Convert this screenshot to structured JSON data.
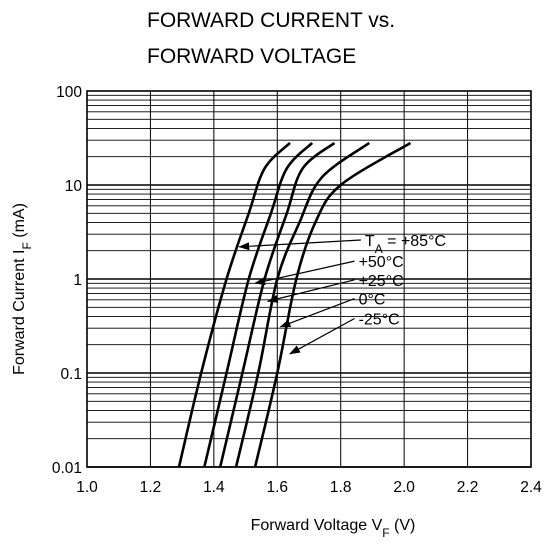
{
  "chart_data": {
    "type": "line",
    "title_line1": "FORWARD CURRENT vs.",
    "title_line2": "FORWARD VOLTAGE",
    "xlabel": {
      "main": "Forward Voltage V",
      "sub": "F",
      "unit": " (V)"
    },
    "ylabel": {
      "main": "Forward Current I",
      "sub": "F",
      "unit": " (mA)"
    },
    "xlim": [
      1.0,
      2.4
    ],
    "ylim": [
      0.01,
      100
    ],
    "yscale": "log",
    "grid": true,
    "x_ticks": [
      "1.0",
      "1.2",
      "1.4",
      "1.6",
      "1.8",
      "2.0",
      "2.2",
      "2.4"
    ],
    "y_ticks": [
      "0.01",
      "0.1",
      "1",
      "10",
      "100"
    ],
    "series": [
      {
        "name": "T_A = +85°C",
        "label_main": "T",
        "label_sub": "A",
        "label_rest": " = +85°C",
        "points": [
          [
            1.29,
            0.01
          ],
          [
            1.36,
            0.1
          ],
          [
            1.44,
            1
          ],
          [
            1.51,
            5
          ],
          [
            1.56,
            15
          ],
          [
            1.64,
            28
          ]
        ]
      },
      {
        "name": "+50°C",
        "label_main": "+50°C",
        "label_sub": "",
        "label_rest": "",
        "points": [
          [
            1.37,
            0.01
          ],
          [
            1.44,
            0.1
          ],
          [
            1.51,
            1
          ],
          [
            1.58,
            5
          ],
          [
            1.63,
            15
          ],
          [
            1.71,
            28
          ]
        ]
      },
      {
        "name": "+25°C",
        "label_main": "+25°C",
        "label_sub": "",
        "label_rest": "",
        "points": [
          [
            1.42,
            0.01
          ],
          [
            1.49,
            0.1
          ],
          [
            1.56,
            1
          ],
          [
            1.63,
            5
          ],
          [
            1.68,
            15
          ],
          [
            1.78,
            28
          ]
        ]
      },
      {
        "name": "0°C",
        "label_main": "0°C",
        "label_sub": "",
        "label_rest": "",
        "points": [
          [
            1.47,
            0.01
          ],
          [
            1.54,
            0.1
          ],
          [
            1.6,
            1
          ],
          [
            1.67,
            4
          ],
          [
            1.74,
            12
          ],
          [
            1.89,
            28
          ]
        ]
      },
      {
        "name": "-25°C",
        "label_main": "-25°C",
        "label_sub": "",
        "label_rest": "",
        "points": [
          [
            1.53,
            0.01
          ],
          [
            1.6,
            0.1
          ],
          [
            1.66,
            1
          ],
          [
            1.72,
            4
          ],
          [
            1.8,
            10
          ],
          [
            2.02,
            28
          ]
        ]
      }
    ],
    "annotations": [
      {
        "series": 0,
        "label_xy": [
          1.87,
          2.6
        ],
        "arrow_to": [
          1.48,
          2.2
        ]
      },
      {
        "series": 1,
        "label_xy": [
          1.85,
          1.55
        ],
        "arrow_to": [
          1.53,
          0.9
        ]
      },
      {
        "series": 2,
        "label_xy": [
          1.85,
          0.98
        ],
        "arrow_to": [
          1.57,
          0.58
        ]
      },
      {
        "series": 3,
        "label_xy": [
          1.85,
          0.62
        ],
        "arrow_to": [
          1.61,
          0.31
        ]
      },
      {
        "series": 4,
        "label_xy": [
          1.85,
          0.38
        ],
        "arrow_to": [
          1.64,
          0.16
        ]
      }
    ]
  }
}
